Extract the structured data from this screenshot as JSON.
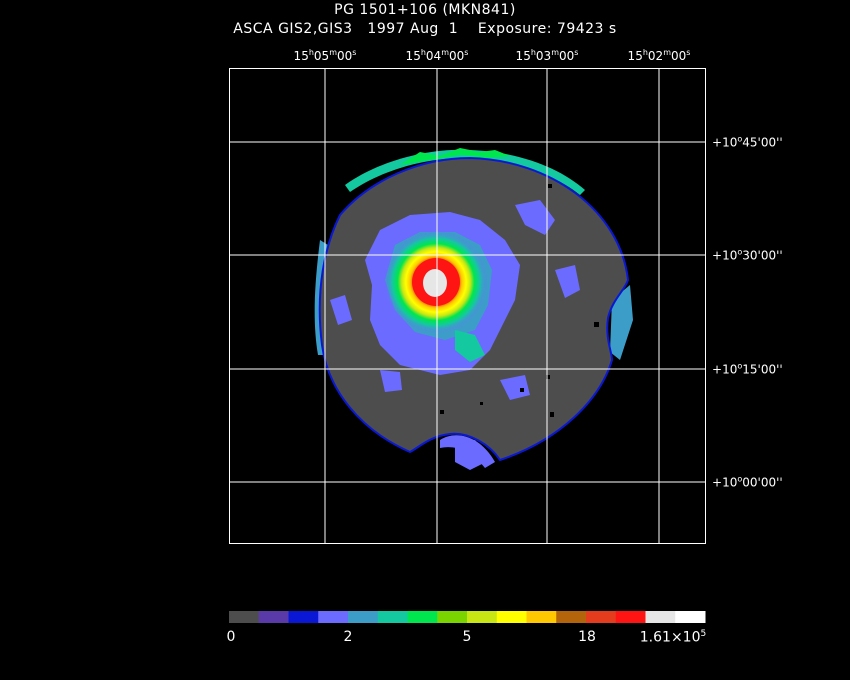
{
  "header": {
    "title": "PG 1501+106 (MKN841)",
    "subtitle": "ASCA GIS2,GIS3   1997 Aug  1    Exposure: 79423 s"
  },
  "ra_axis": {
    "ticks": [
      {
        "h": "15",
        "m": "05",
        "s": "00"
      },
      {
        "h": "15",
        "m": "04",
        "s": "00"
      },
      {
        "h": "15",
        "m": "03",
        "s": "00"
      },
      {
        "h": "15",
        "m": "02",
        "s": "00"
      }
    ]
  },
  "dec_axis": {
    "ticks": [
      {
        "sign": "+",
        "deg": "10",
        "min": "45",
        "sec": "00"
      },
      {
        "sign": "+",
        "deg": "10",
        "min": "30",
        "sec": "00"
      },
      {
        "sign": "+",
        "deg": "10",
        "min": "15",
        "sec": "00"
      },
      {
        "sign": "+",
        "deg": "10",
        "min": "00",
        "sec": "00"
      }
    ]
  },
  "colorbar": {
    "colors": [
      "#4d4d4d",
      "#5a3aa8",
      "#0a18d6",
      "#6b6bff",
      "#3c9ec8",
      "#14c8a0",
      "#00e64e",
      "#7ad400",
      "#c8e614",
      "#ffff00",
      "#ffc800",
      "#b4640a",
      "#e63c1e",
      "#ff1414",
      "#e6e6e6",
      "#ffffff"
    ],
    "labels": {
      "l0": "0",
      "l1": "2",
      "l2": "5",
      "l3": "18",
      "l4_mantissa": "1.61×10",
      "l4_exponent": "5"
    }
  },
  "image_colors": {
    "background": "#000000",
    "field": "#4d4d4d",
    "grid": "#ffffff"
  }
}
